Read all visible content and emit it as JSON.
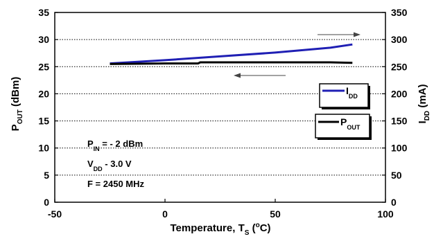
{
  "chart_data": {
    "type": "line",
    "x": [
      -25,
      0,
      25,
      50,
      75,
      85
    ],
    "xlim": [
      -50,
      100
    ],
    "xticks": [
      -50,
      0,
      50,
      100
    ],
    "xlabel": {
      "main": "Temperature, T",
      "sub": "S",
      "open": " (",
      "sup": "o",
      "close": "C)"
    },
    "y_left": {
      "lim": [
        0,
        35
      ],
      "ticks": [
        0,
        5,
        10,
        15,
        20,
        25,
        30,
        35
      ],
      "label": {
        "main": "P",
        "sub": "OUT",
        "unit": " (dBm)"
      }
    },
    "y_right": {
      "lim": [
        0,
        350
      ],
      "ticks": [
        0,
        50,
        100,
        150,
        200,
        250,
        300,
        350
      ],
      "label": {
        "main": "I",
        "sub": "DD",
        "unit": " (mA)"
      }
    },
    "series": [
      {
        "legend_main": "I",
        "legend_sub": "DD",
        "axis": "right",
        "color": "#1f1fb4",
        "x": [
          -25,
          0,
          25,
          50,
          75,
          85
        ],
        "values": [
          256,
          262,
          269,
          276,
          285,
          291
        ]
      },
      {
        "legend_main": "P",
        "legend_sub": "OUT",
        "axis": "left",
        "color": "#000000",
        "x": [
          -25,
          0,
          15,
          16,
          50,
          75,
          85
        ],
        "values": [
          25.5,
          25.6,
          25.6,
          25.8,
          25.8,
          25.8,
          25.7
        ]
      }
    ],
    "gridlines_y": [
      5,
      10,
      15,
      20,
      25,
      30
    ],
    "grid": "dotted horizontal",
    "notes": [
      {
        "main": "P",
        "sub": "IN",
        "rest": " = - 2 dBm"
      },
      {
        "main": "V",
        "sub": "DD",
        "rest": " - 3.0 V"
      },
      {
        "main": "F = 2450 MHz",
        "sub": "",
        "rest": ""
      }
    ],
    "arrows": [
      {
        "direction": "right",
        "points_to": "right axis"
      },
      {
        "direction": "left",
        "points_to": "left axis"
      }
    ]
  }
}
